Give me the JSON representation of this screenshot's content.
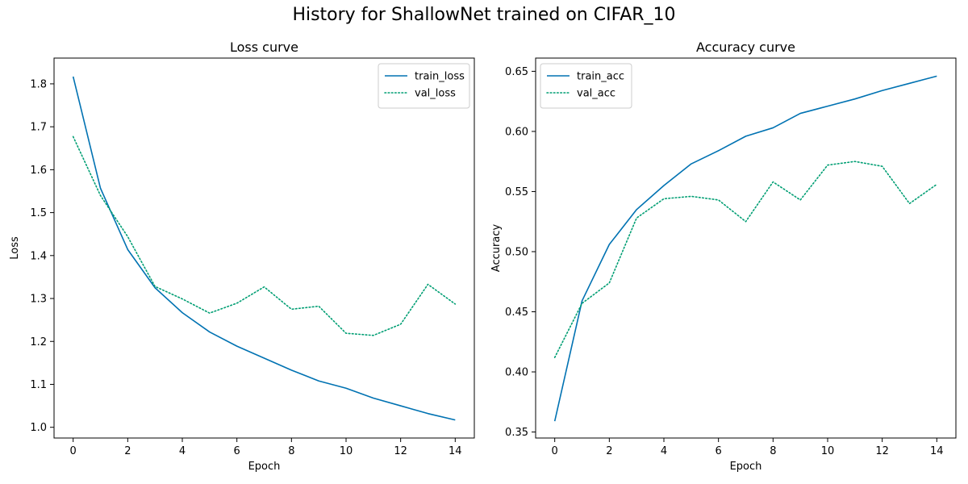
{
  "figure": {
    "title": "History for ShallowNet trained on CIFAR_10"
  },
  "chart_data": [
    {
      "type": "line",
      "title": "Loss curve",
      "xlabel": "Epoch",
      "ylabel": "Loss",
      "xlim": [
        -0.7,
        14.7
      ],
      "ylim": [
        0.975,
        1.86
      ],
      "xticks": [
        0,
        2,
        4,
        6,
        8,
        10,
        12,
        14
      ],
      "yticks": [
        1.0,
        1.1,
        1.2,
        1.3,
        1.4,
        1.5,
        1.6,
        1.7,
        1.8
      ],
      "ytick_decimals": 1,
      "legend_position": "top-right",
      "grid": false,
      "x": [
        0,
        1,
        2,
        3,
        4,
        5,
        6,
        7,
        8,
        9,
        10,
        11,
        12,
        13,
        14
      ],
      "series": [
        {
          "name": "train_loss",
          "style": "solid",
          "color": "#0072b2",
          "values": [
            1.817,
            1.557,
            1.414,
            1.325,
            1.267,
            1.222,
            1.189,
            1.161,
            1.133,
            1.108,
            1.091,
            1.068,
            1.05,
            1.032,
            1.017
          ]
        },
        {
          "name": "val_loss",
          "style": "dotted",
          "color": "#009e73",
          "values": [
            1.677,
            1.54,
            1.444,
            1.328,
            1.299,
            1.266,
            1.289,
            1.327,
            1.275,
            1.282,
            1.219,
            1.214,
            1.24,
            1.333,
            1.287
          ]
        }
      ]
    },
    {
      "type": "line",
      "title": "Accuracy curve",
      "xlabel": "Epoch",
      "ylabel": "Accuracy",
      "xlim": [
        -0.7,
        14.7
      ],
      "ylim": [
        0.345,
        0.661
      ],
      "xticks": [
        0,
        2,
        4,
        6,
        8,
        10,
        12,
        14
      ],
      "yticks": [
        0.35,
        0.4,
        0.45,
        0.5,
        0.55,
        0.6,
        0.65
      ],
      "ytick_decimals": 2,
      "legend_position": "top-left",
      "grid": false,
      "x": [
        0,
        1,
        2,
        3,
        4,
        5,
        6,
        7,
        8,
        9,
        10,
        11,
        12,
        13,
        14
      ],
      "series": [
        {
          "name": "train_acc",
          "style": "solid",
          "color": "#0072b2",
          "values": [
            0.359,
            0.459,
            0.506,
            0.535,
            0.555,
            0.573,
            0.584,
            0.596,
            0.603,
            0.615,
            0.621,
            0.627,
            0.634,
            0.64,
            0.646
          ]
        },
        {
          "name": "val_acc",
          "style": "dotted",
          "color": "#009e73",
          "values": [
            0.412,
            0.457,
            0.474,
            0.528,
            0.544,
            0.546,
            0.543,
            0.525,
            0.558,
            0.543,
            0.572,
            0.575,
            0.571,
            0.54,
            0.556
          ]
        }
      ]
    }
  ]
}
